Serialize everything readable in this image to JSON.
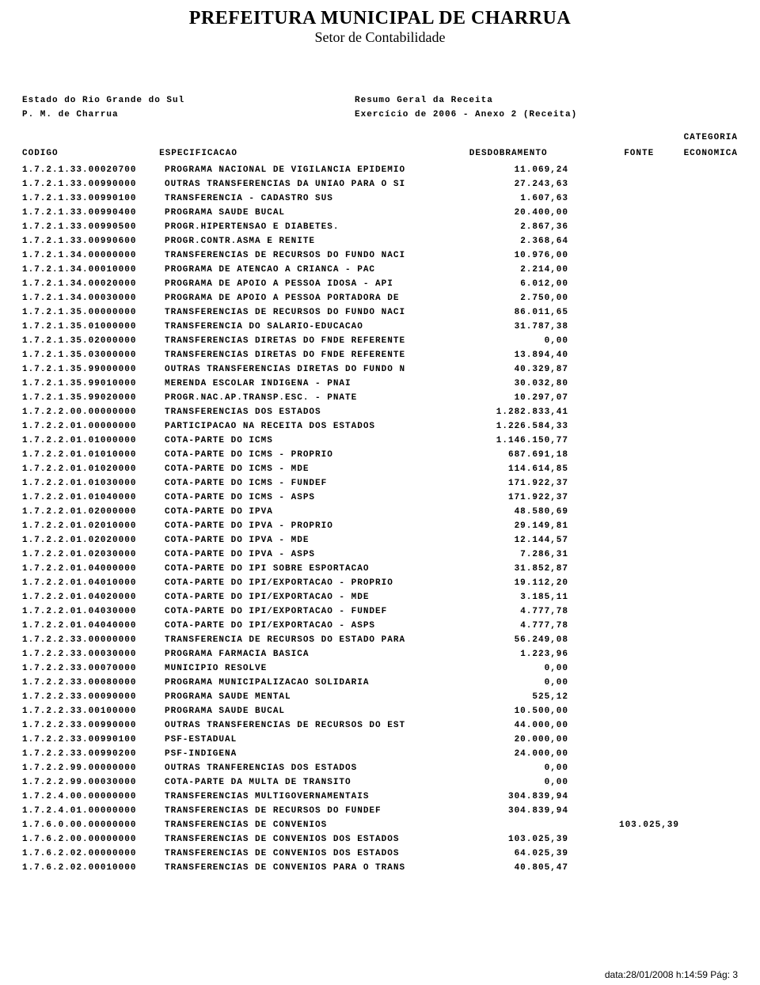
{
  "header": {
    "title": "PREFEITURA MUNICIPAL DE CHARRUA",
    "subtitle": "Setor de Contabilidade"
  },
  "meta": {
    "left1": "Estado do Rio Grande do Sul",
    "right1": "Resumo Geral da Receita",
    "left2": "P. M. de Charrua",
    "right2": "Exercício  de 2006 - Anexo 2 (Receita)"
  },
  "columns": {
    "codigo": "CODIGO",
    "espec": "ESPECIFICACAO",
    "desdobramento": "DESDOBRAMENTO",
    "fonte": "FONTE",
    "categoria_top": "CATEGORIA",
    "categoria_bot": "ECONOMICA"
  },
  "rows": [
    {
      "codigo": "1.7.2.1.33.00020700",
      "espec": "PROGRAMA NACIONAL DE VIGILANCIA EPIDEMIO",
      "desd": "11.069,24",
      "fonte": ""
    },
    {
      "codigo": "1.7.2.1.33.00990000",
      "espec": "OUTRAS TRANSFERENCIAS DA UNIAO PARA O SI",
      "desd": "27.243,63",
      "fonte": ""
    },
    {
      "codigo": "1.7.2.1.33.00990100",
      "espec": "TRANSFERENCIA - CADASTRO SUS",
      "desd": "1.607,63",
      "fonte": ""
    },
    {
      "codigo": "1.7.2.1.33.00990400",
      "espec": "PROGRAMA SAUDE BUCAL",
      "desd": "20.400,00",
      "fonte": ""
    },
    {
      "codigo": "1.7.2.1.33.00990500",
      "espec": "PROGR.HIPERTENSAO E DIABETES.",
      "desd": "2.867,36",
      "fonte": ""
    },
    {
      "codigo": "1.7.2.1.33.00990600",
      "espec": "PROGR.CONTR.ASMA E RENITE",
      "desd": "2.368,64",
      "fonte": ""
    },
    {
      "codigo": "1.7.2.1.34.00000000",
      "espec": "TRANSFERENCIAS DE RECURSOS DO FUNDO NACI",
      "desd": "10.976,00",
      "fonte": ""
    },
    {
      "codigo": "1.7.2.1.34.00010000",
      "espec": "PROGRAMA DE ATENCAO A CRIANCA - PAC",
      "desd": "2.214,00",
      "fonte": ""
    },
    {
      "codigo": "1.7.2.1.34.00020000",
      "espec": "PROGRAMA DE APOIO A PESSOA IDOSA - API",
      "desd": "6.012,00",
      "fonte": ""
    },
    {
      "codigo": "1.7.2.1.34.00030000",
      "espec": "PROGRAMA DE APOIO A PESSOA PORTADORA DE",
      "desd": "2.750,00",
      "fonte": ""
    },
    {
      "codigo": "1.7.2.1.35.00000000",
      "espec": "TRANSFERENCIAS DE RECURSOS DO FUNDO NACI",
      "desd": "86.011,65",
      "fonte": ""
    },
    {
      "codigo": "1.7.2.1.35.01000000",
      "espec": "TRANSFERENCIA DO SALARIO-EDUCACAO",
      "desd": "31.787,38",
      "fonte": ""
    },
    {
      "codigo": "1.7.2.1.35.02000000",
      "espec": "TRANSFERENCIAS DIRETAS DO FNDE REFERENTE",
      "desd": "0,00",
      "fonte": ""
    },
    {
      "codigo": "1.7.2.1.35.03000000",
      "espec": "TRANSFERENCIAS DIRETAS DO FNDE REFERENTE",
      "desd": "13.894,40",
      "fonte": ""
    },
    {
      "codigo": "1.7.2.1.35.99000000",
      "espec": "OUTRAS TRANSFERENCIAS DIRETAS DO FUNDO N",
      "desd": "40.329,87",
      "fonte": ""
    },
    {
      "codigo": "1.7.2.1.35.99010000",
      "espec": "MERENDA ESCOLAR INDIGENA - PNAI",
      "desd": "30.032,80",
      "fonte": ""
    },
    {
      "codigo": "1.7.2.1.35.99020000",
      "espec": "PROGR.NAC.AP.TRANSP.ESC. - PNATE",
      "desd": "10.297,07",
      "fonte": ""
    },
    {
      "codigo": "1.7.2.2.00.00000000",
      "espec": "TRANSFERENCIAS DOS ESTADOS",
      "desd": "1.282.833,41",
      "fonte": ""
    },
    {
      "codigo": "1.7.2.2.01.00000000",
      "espec": "PARTICIPACAO NA RECEITA DOS ESTADOS",
      "desd": "1.226.584,33",
      "fonte": ""
    },
    {
      "codigo": "1.7.2.2.01.01000000",
      "espec": "COTA-PARTE DO ICMS",
      "desd": "1.146.150,77",
      "fonte": ""
    },
    {
      "codigo": "1.7.2.2.01.01010000",
      "espec": "COTA-PARTE DO ICMS - PROPRIO",
      "desd": "687.691,18",
      "fonte": ""
    },
    {
      "codigo": "1.7.2.2.01.01020000",
      "espec": "COTA-PARTE DO ICMS - MDE",
      "desd": "114.614,85",
      "fonte": ""
    },
    {
      "codigo": "1.7.2.2.01.01030000",
      "espec": "COTA-PARTE DO ICMS - FUNDEF",
      "desd": "171.922,37",
      "fonte": ""
    },
    {
      "codigo": "1.7.2.2.01.01040000",
      "espec": "COTA-PARTE DO ICMS - ASPS",
      "desd": "171.922,37",
      "fonte": ""
    },
    {
      "codigo": "1.7.2.2.01.02000000",
      "espec": "COTA-PARTE DO IPVA",
      "desd": "48.580,69",
      "fonte": ""
    },
    {
      "codigo": "1.7.2.2.01.02010000",
      "espec": "COTA-PARTE DO IPVA - PROPRIO",
      "desd": "29.149,81",
      "fonte": ""
    },
    {
      "codigo": "1.7.2.2.01.02020000",
      "espec": "COTA-PARTE DO IPVA - MDE",
      "desd": "12.144,57",
      "fonte": ""
    },
    {
      "codigo": "1.7.2.2.01.02030000",
      "espec": "COTA-PARTE DO IPVA - ASPS",
      "desd": "7.286,31",
      "fonte": ""
    },
    {
      "codigo": "1.7.2.2.01.04000000",
      "espec": "COTA-PARTE DO IPI SOBRE ESPORTACAO",
      "desd": "31.852,87",
      "fonte": ""
    },
    {
      "codigo": "1.7.2.2.01.04010000",
      "espec": "COTA-PARTE DO IPI/EXPORTACAO - PROPRIO",
      "desd": "19.112,20",
      "fonte": ""
    },
    {
      "codigo": "1.7.2.2.01.04020000",
      "espec": "COTA-PARTE DO IPI/EXPORTACAO - MDE",
      "desd": "3.185,11",
      "fonte": ""
    },
    {
      "codigo": "1.7.2.2.01.04030000",
      "espec": "COTA-PARTE DO IPI/EXPORTACAO - FUNDEF",
      "desd": "4.777,78",
      "fonte": ""
    },
    {
      "codigo": "1.7.2.2.01.04040000",
      "espec": "COTA-PARTE DO IPI/EXPORTACAO - ASPS",
      "desd": "4.777,78",
      "fonte": ""
    },
    {
      "codigo": "1.7.2.2.33.00000000",
      "espec": "TRANSFERENCIA DE RECURSOS DO ESTADO PARA",
      "desd": "56.249,08",
      "fonte": ""
    },
    {
      "codigo": "1.7.2.2.33.00030000",
      "espec": "PROGRAMA FARMACIA BASICA",
      "desd": "1.223,96",
      "fonte": ""
    },
    {
      "codigo": "1.7.2.2.33.00070000",
      "espec": "MUNICIPIO RESOLVE",
      "desd": "0,00",
      "fonte": ""
    },
    {
      "codigo": "1.7.2.2.33.00080000",
      "espec": "PROGRAMA MUNICIPALIZACAO SOLIDARIA",
      "desd": "0,00",
      "fonte": ""
    },
    {
      "codigo": "1.7.2.2.33.00090000",
      "espec": "PROGRAMA SAUDE MENTAL",
      "desd": "525,12",
      "fonte": ""
    },
    {
      "codigo": "1.7.2.2.33.00100000",
      "espec": "PROGRAMA SAUDE BUCAL",
      "desd": "10.500,00",
      "fonte": ""
    },
    {
      "codigo": "1.7.2.2.33.00990000",
      "espec": "OUTRAS TRANSFERENCIAS DE RECURSOS DO EST",
      "desd": "44.000,00",
      "fonte": ""
    },
    {
      "codigo": "1.7.2.2.33.00990100",
      "espec": "PSF-ESTADUAL",
      "desd": "20.000,00",
      "fonte": ""
    },
    {
      "codigo": "1.7.2.2.33.00990200",
      "espec": "PSF-INDIGENA",
      "desd": "24.000,00",
      "fonte": ""
    },
    {
      "codigo": "1.7.2.2.99.00000000",
      "espec": "OUTRAS TRANFERENCIAS DOS ESTADOS",
      "desd": "0,00",
      "fonte": ""
    },
    {
      "codigo": "1.7.2.2.99.00030000",
      "espec": "COTA-PARTE DA MULTA DE TRANSITO",
      "desd": "0,00",
      "fonte": ""
    },
    {
      "codigo": "1.7.2.4.00.00000000",
      "espec": "TRANSFERENCIAS MULTIGOVERNAMENTAIS",
      "desd": "304.839,94",
      "fonte": ""
    },
    {
      "codigo": "1.7.2.4.01.00000000",
      "espec": "TRANSFERENCIAS DE RECURSOS DO FUNDEF",
      "desd": "304.839,94",
      "fonte": ""
    },
    {
      "codigo": "1.7.6.0.00.00000000",
      "espec": "TRANSFERENCIAS DE CONVENIOS",
      "desd": "",
      "fonte": "103.025,39"
    },
    {
      "codigo": "1.7.6.2.00.00000000",
      "espec": "TRANSFERENCIAS DE CONVENIOS DOS ESTADOS",
      "desd": "103.025,39",
      "fonte": ""
    },
    {
      "codigo": "1.7.6.2.02.00000000",
      "espec": "TRANSFERENCIAS DE CONVENIOS DOS ESTADOS",
      "desd": "64.025,39",
      "fonte": ""
    },
    {
      "codigo": "1.7.6.2.02.00010000",
      "espec": "TRANSFERENCIAS DE CONVENIOS PARA O TRANS",
      "desd": "40.805,47",
      "fonte": ""
    }
  ],
  "footer": {
    "text": "data:28/01/2008  h:14:59  Pág: 3"
  }
}
